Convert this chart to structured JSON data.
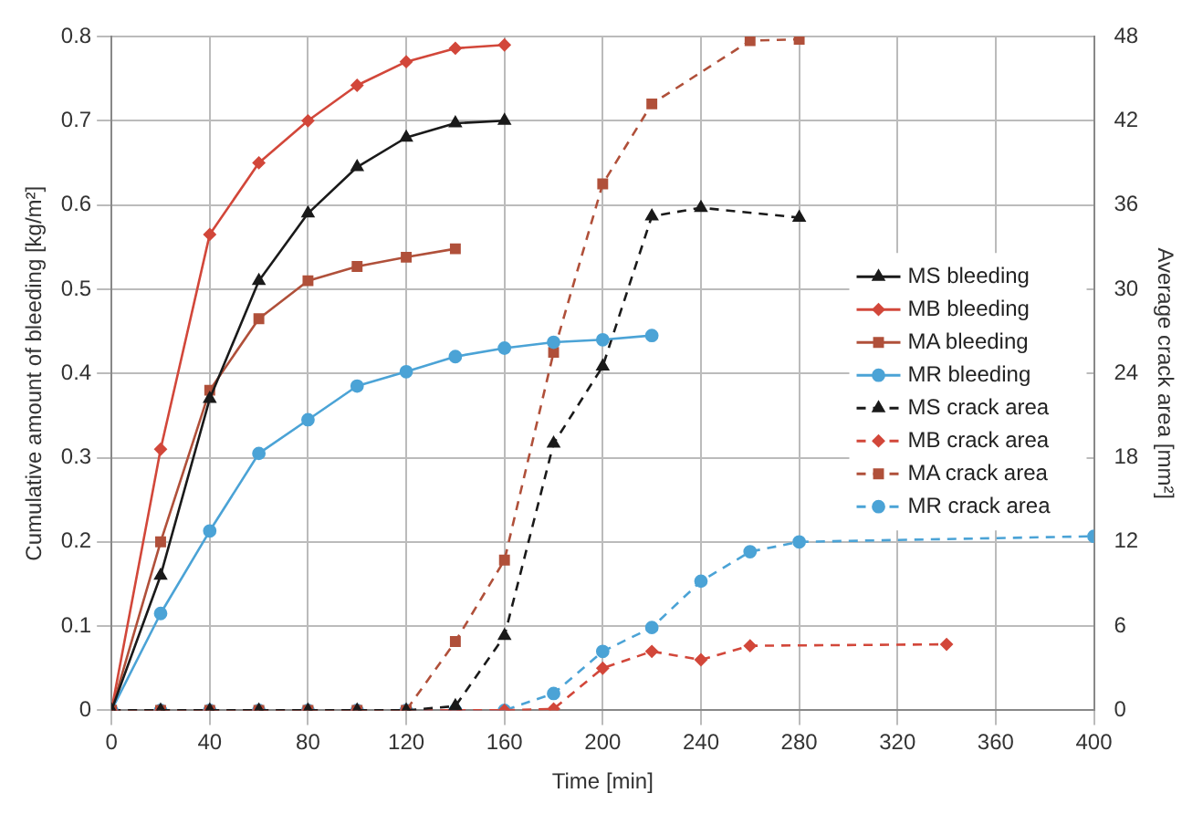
{
  "chart_data": {
    "type": "line",
    "xlabel": "Time [min]",
    "ylabel": "Cumulative amount of bleeding [kg/m²]",
    "y2label": "Average crack area [mm²]",
    "xlim": [
      0,
      400
    ],
    "xticks": [
      0,
      40,
      80,
      120,
      160,
      200,
      240,
      280,
      320,
      360,
      400
    ],
    "ylim": [
      0,
      0.8
    ],
    "yticks": [
      0,
      0.1,
      0.2,
      0.3,
      0.4,
      0.5,
      0.6,
      0.7,
      0.8
    ],
    "y2lim": [
      0,
      48
    ],
    "y2ticks": [
      0,
      6,
      12,
      18,
      24,
      30,
      36,
      42,
      48
    ],
    "grid": true,
    "legend": "right",
    "series": [
      {
        "name": "MS bleeding",
        "color": "#1a1a1a",
        "marker": "triangle",
        "line_style": "solid",
        "x": [
          0,
          20,
          40,
          60,
          80,
          100,
          120,
          140,
          160
        ],
        "values": [
          0,
          0.16,
          0.37,
          0.51,
          0.59,
          0.645,
          0.68,
          0.697,
          0.7
        ]
      },
      {
        "name": "MB bleeding",
        "color": "#d2473a",
        "marker": "diamond",
        "line_style": "solid",
        "x": [
          0,
          20,
          40,
          60,
          80,
          100,
          120,
          140,
          160
        ],
        "values": [
          0,
          0.31,
          0.565,
          0.65,
          0.7,
          0.742,
          0.77,
          0.786,
          0.79
        ]
      },
      {
        "name": "MA bleeding",
        "color": "#b0503a",
        "marker": "square",
        "line_style": "solid",
        "x": [
          0,
          20,
          40,
          60,
          80,
          100,
          120,
          140
        ],
        "values": [
          0,
          0.2,
          0.38,
          0.465,
          0.51,
          0.527,
          0.538,
          0.548
        ]
      },
      {
        "name": "MR bleeding",
        "color": "#4ba3d6",
        "marker": "circle",
        "line_style": "solid",
        "x": [
          0,
          20,
          40,
          60,
          80,
          100,
          120,
          140,
          160,
          180,
          200,
          220
        ],
        "values": [
          0,
          0.115,
          0.213,
          0.305,
          0.345,
          0.385,
          0.402,
          0.42,
          0.43,
          0.437,
          0.44,
          0.445
        ]
      },
      {
        "name": "MS crack area",
        "color": "#1a1a1a",
        "marker": "triangle",
        "line_style": "dashed",
        "axis": "y2",
        "x": [
          0,
          20,
          40,
          60,
          80,
          100,
          120,
          140,
          160,
          180,
          200,
          220,
          240,
          280
        ],
        "values": [
          0,
          0,
          0,
          0,
          0,
          0,
          0,
          0.3,
          5.3,
          19,
          24.5,
          35.2,
          35.8,
          35.1
        ]
      },
      {
        "name": "MB crack area",
        "color": "#d2473a",
        "marker": "diamond",
        "line_style": "dashed",
        "axis": "y2",
        "x": [
          0,
          20,
          40,
          60,
          80,
          100,
          120,
          140,
          160,
          180,
          200,
          220,
          240,
          260,
          340
        ],
        "values": [
          0,
          0,
          0,
          0,
          0,
          0,
          0,
          0,
          0,
          0.1,
          3,
          4.2,
          3.6,
          4.6,
          4.7
        ]
      },
      {
        "name": "MA crack area",
        "color": "#b0503a",
        "marker": "square",
        "line_style": "dashed",
        "axis": "y2",
        "x": [
          0,
          20,
          40,
          60,
          80,
          100,
          120,
          140,
          160,
          180,
          200,
          220,
          260,
          280
        ],
        "values": [
          0,
          0,
          0,
          0,
          0,
          0,
          0,
          4.9,
          10.7,
          25.5,
          37.5,
          43.2,
          47.7,
          47.8
        ]
      },
      {
        "name": "MR crack area",
        "color": "#4ba3d6",
        "marker": "circle",
        "line_style": "dashed",
        "axis": "y2",
        "x": [
          0,
          20,
          40,
          60,
          80,
          100,
          120,
          140,
          160,
          180,
          200,
          220,
          240,
          260,
          280,
          400
        ],
        "values": [
          0,
          0,
          0,
          0,
          0,
          0,
          0,
          0,
          0,
          1.2,
          4.2,
          5.9,
          9.2,
          11.3,
          12,
          12.4
        ]
      }
    ]
  }
}
